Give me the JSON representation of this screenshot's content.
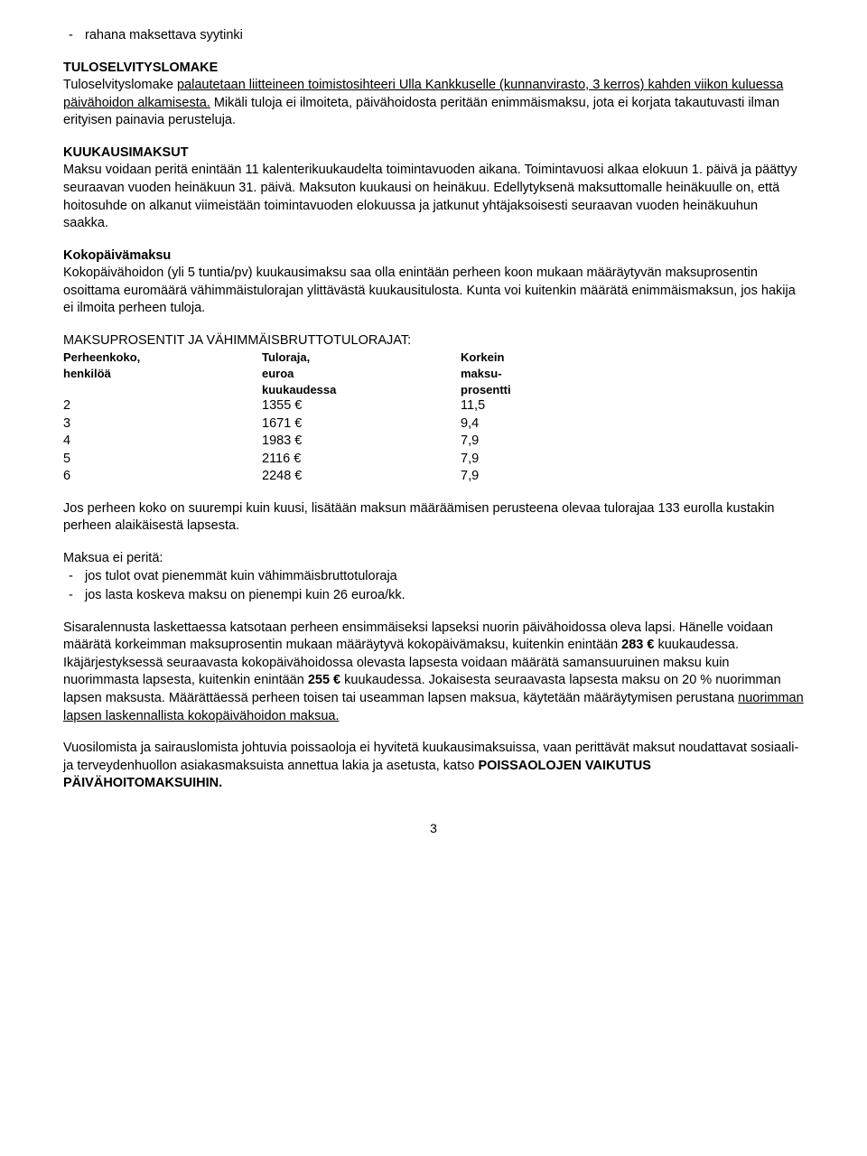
{
  "bullet_top": "rahana maksettava syytinki",
  "sec1": {
    "title": "TULOSELVITYSLOMAKE",
    "p1_a": "Tuloselvityslomake ",
    "p1_u": "palautetaan liitteineen toimistosihteeri Ulla Kankkuselle (kunnanvirasto, 3 kerros) kahden viikon kuluessa päivähoidon alkamisesta.",
    "p1_b": " Mikäli tuloja ei ilmoiteta, päivähoidosta peritään enimmäismaksu, jota ei korjata takautuvasti ilman erityisen painavia perusteluja."
  },
  "sec2": {
    "title": "KUUKAUSIMAKSUT",
    "p1": "Maksu voidaan peritä enintään 11 kalenterikuukaudelta toimintavuoden aikana. Toimintavuosi alkaa elokuun 1. päivä ja päättyy seuraavan vuoden heinäkuun 31. päivä. Maksuton kuukausi on heinäkuu. Edellytyksenä maksuttomalle heinäkuulle on, että hoitosuhde on alkanut viimeistään toimintavuoden elokuussa ja jatkunut yhtäjaksoisesti seuraavan vuoden heinäkuuhun saakka."
  },
  "sec3": {
    "title": "Kokopäivämaksu",
    "p1": "Kokopäivähoidon (yli 5 tuntia/pv) kuukausimaksu saa olla enintään perheen koon mukaan määräytyvän maksuprosentin osoittama euromäärä vähimmäistulorajan ylittävästä kuukausitulosta. Kunta voi kuitenkin määrätä enimmäismaksun, jos hakija ei ilmoita perheen tuloja."
  },
  "sec4": {
    "title": "MAKSUPROSENTIT JA VÄHIMMÄISBRUTTOTULORAJAT:",
    "headers": {
      "c1a": "Perheenkoko,",
      "c1b": "henkilöä",
      "c2a": "Tuloraja,",
      "c2b": "euroa",
      "c2c": "kuukaudessa",
      "c3a": "Korkein",
      "c3b": "maksu-",
      "c3c": "prosentti"
    },
    "rows": [
      {
        "a": "2",
        "b": "1355 €",
        "c": "11,5"
      },
      {
        "a": "3",
        "b": "1671 €",
        "c": " 9,4"
      },
      {
        "a": "4",
        "b": "1983 €",
        "c": " 7,9"
      },
      {
        "a": "5",
        "b": "2116 €",
        "c": " 7,9"
      },
      {
        "a": "6",
        "b": "2248 €",
        "c": " 7,9"
      }
    ]
  },
  "p_after_table": "Jos perheen koko on suurempi kuin kuusi, lisätään maksun määräämisen perusteena olevaa tulorajaa 133 eurolla kustakin perheen alaikäisestä lapsesta.",
  "maksua_ei": {
    "title": "Maksua ei peritä:",
    "items": [
      "jos tulot ovat pienemmät kuin vähimmäisbruttotuloraja",
      "jos lasta koskeva maksu on pienempi kuin 26 euroa/kk."
    ]
  },
  "p_sisar": {
    "a": "Sisaralennusta laskettaessa katsotaan perheen ensimmäiseksi lapseksi nuorin päivähoidossa oleva lapsi. Hänelle voidaan määrätä korkeimman maksuprosentin mukaan määräytyvä kokopäivämaksu, kuitenkin enintään ",
    "b283": "283 €",
    "b": " kuukaudessa. Ikäjärjestyksessä seuraavasta kokopäivähoidossa olevasta lapsesta voidaan määrätä samansuuruinen maksu kuin nuorimmasta lapsesta, kuitenkin enintään ",
    "b255": "255 €",
    "c": " kuukaudessa. Jokaisesta seuraavasta lapsesta maksu on 20 % nuorimman lapsen maksusta. Määrättäessä perheen toisen tai useamman lapsen maksua, käytetään määräytymisen perustana ",
    "u": "nuorimman lapsen laskennallista kokopäivähoidon maksua."
  },
  "p_vuosi": {
    "a": "Vuosilomista ja sairauslomista johtuvia poissaoloja ei hyvitetä kuukausimaksuissa, vaan perittävät maksut noudattavat sosiaali- ja terveydenhuollon asiakasmaksuista annettua lakia ja asetusta, katso ",
    "b": "POISSAOLOJEN VAIKUTUS PÄIVÄHOITOMAKSUIHIN."
  },
  "pagenum": "3"
}
